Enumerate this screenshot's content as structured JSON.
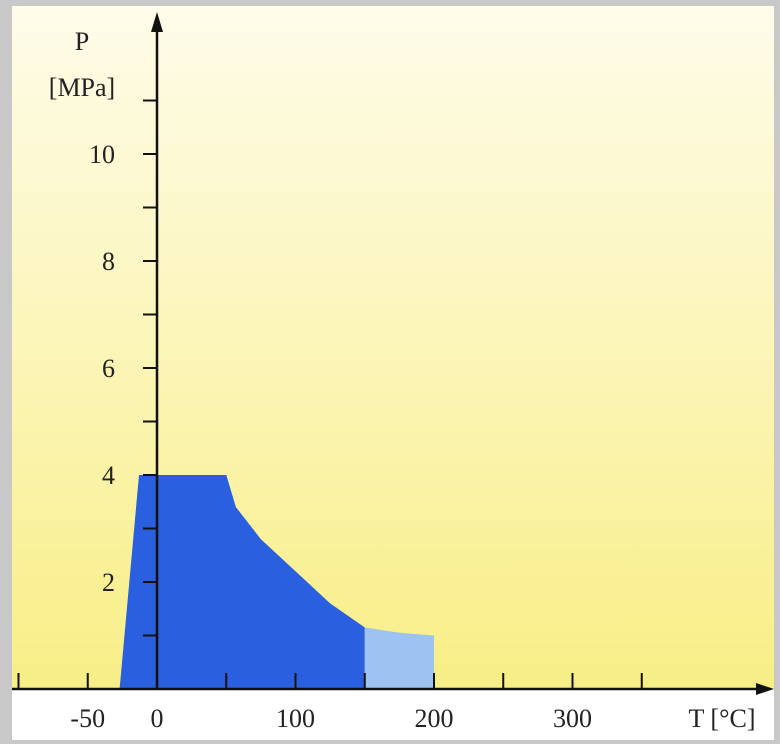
{
  "chart_data": {
    "type": "area",
    "title": "",
    "xlabel": "T [°C]",
    "ylabel_line1": "P",
    "ylabel_line2": "[MPa]",
    "xlim": [
      -100,
      400
    ],
    "ylim": [
      0,
      12
    ],
    "x_ticks": [
      -50,
      0,
      100,
      200,
      300
    ],
    "x_minor_ticks": [
      -100,
      50,
      150,
      250,
      350
    ],
    "y_ticks": [
      2,
      4,
      6,
      8,
      10
    ],
    "y_minor_ticks": [
      1,
      3,
      5,
      7,
      9,
      11
    ],
    "grid": false,
    "legend": "none",
    "series": [
      {
        "color": "#2a5fe0",
        "points": [
          [
            -27,
            0
          ],
          [
            -13,
            4
          ],
          [
            50,
            4
          ],
          [
            57,
            3.4
          ],
          [
            75,
            2.8
          ],
          [
            100,
            2.2
          ],
          [
            125,
            1.6
          ],
          [
            150,
            1.15
          ],
          [
            150,
            0
          ]
        ]
      },
      {
        "color": "#9cc3f2",
        "points": [
          [
            150,
            0
          ],
          [
            150,
            1.15
          ],
          [
            175,
            1.05
          ],
          [
            200,
            1.0
          ],
          [
            200,
            0
          ]
        ]
      }
    ],
    "colors": {
      "background_top": "#fefcea",
      "background_bottom": "#f8ee86",
      "axis": "#111111"
    }
  }
}
